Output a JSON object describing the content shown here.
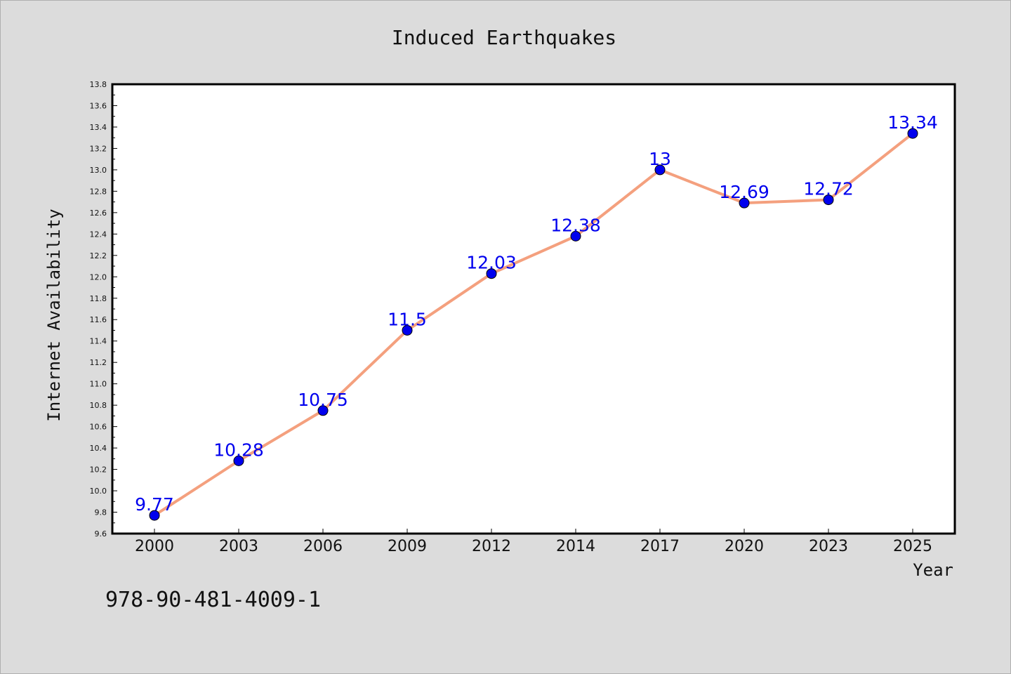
{
  "chart_data": {
    "type": "line",
    "title": "Induced Earthquakes",
    "xlabel": "Year",
    "ylabel": "Internet Availability",
    "categories": [
      "2000",
      "2003",
      "2006",
      "2009",
      "2012",
      "2014",
      "2017",
      "2020",
      "2023",
      "2025"
    ],
    "values": [
      9.77,
      10.28,
      10.75,
      11.5,
      12.03,
      12.38,
      13,
      12.69,
      12.72,
      13.34
    ],
    "data_labels": [
      "9.77",
      "10.28",
      "10.75",
      "11.5",
      "12.03",
      "12.38",
      "13",
      "12.69",
      "12.72",
      "13.34"
    ],
    "ylim": [
      9.6,
      13.8
    ],
    "yticks": [
      "9.6",
      "9.8",
      "10.0",
      "10.2",
      "10.4",
      "10.6",
      "10.8",
      "11.0",
      "11.2",
      "11.4",
      "11.6",
      "11.8",
      "12.0",
      "12.2",
      "12.4",
      "12.6",
      "12.8",
      "13.0",
      "13.2",
      "13.4",
      "13.6",
      "13.8"
    ],
    "grid": false,
    "legend": "none",
    "line_color": "#f4a07e",
    "marker_color": "#0000ee",
    "label_color": "#0000ee"
  },
  "footer_text": "978-90-481-4009-1"
}
